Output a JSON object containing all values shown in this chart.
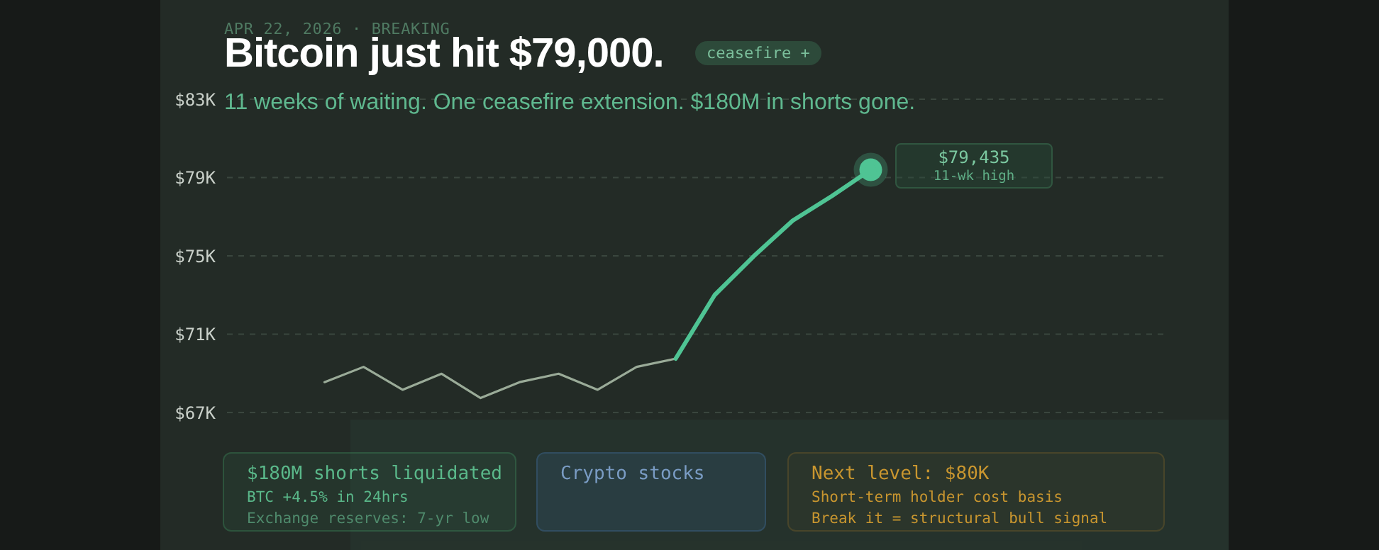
{
  "chart_data": {
    "type": "line",
    "title": "Bitcoin just hit $79,000.",
    "subtitle": "11 weeks of waiting. One ceasefire extension. $180M in shorts gone.",
    "categories": [
      null,
      null,
      null,
      null,
      null,
      null,
      null,
      null,
      null,
      null,
      null,
      null,
      null,
      null,
      null,
      null,
      null,
      null,
      null,
      null,
      null,
      null,
      null,
      null
    ],
    "series": [
      {
        "color": "#9aab98",
        "values": [
          null,
          null,
          68.55,
          69.33,
          68.16,
          68.98,
          67.74,
          68.55,
          68.98,
          68.16,
          69.33,
          69.75,
          null,
          null,
          null,
          null,
          null,
          null,
          null,
          null,
          null,
          null,
          null,
          null
        ]
      },
      {
        "color": "#4fc494",
        "values": [
          null,
          null,
          null,
          null,
          null,
          null,
          null,
          null,
          null,
          null,
          null,
          69.75,
          73.0,
          74.98,
          76.8,
          78.05,
          79.4,
          null,
          null,
          null,
          null,
          null,
          null,
          null
        ]
      },
      {
        "type": "scatter",
        "color": "#4fc494",
        "values": [
          null,
          null,
          null,
          null,
          null,
          null,
          null,
          null,
          null,
          null,
          null,
          null,
          null,
          null,
          null,
          null,
          79.4,
          null,
          null,
          null,
          null,
          null,
          null,
          null
        ]
      }
    ],
    "ylim": [
      67,
      83
    ],
    "yticks": [
      {
        "value": 67,
        "label": "$67K"
      },
      {
        "value": 71,
        "label": "$71K"
      },
      {
        "value": 75,
        "label": "$75K"
      },
      {
        "value": 79,
        "label": "$79K"
      },
      {
        "value": 83,
        "label": "$83K"
      }
    ],
    "tick_labels": "y",
    "grid": "y",
    "line_style": "solid",
    "annotations": [
      "APR 22, 2026 · BREAKING",
      "ceasefire +",
      "$79,435",
      "11-wk high",
      "$180M shorts liquidated",
      "BTC +4.5% in 24hrs",
      "Exchange reserves: 7-yr low",
      "Crypto stocks",
      "Next level: $80K",
      "Short-term holder cost basis",
      "Break it = structural bull signal"
    ]
  }
}
